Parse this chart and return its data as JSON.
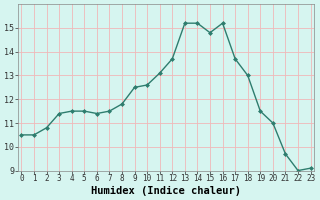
{
  "x": [
    0,
    1,
    2,
    3,
    4,
    5,
    6,
    7,
    8,
    9,
    10,
    11,
    12,
    13,
    14,
    15,
    16,
    17,
    18,
    19,
    20,
    21,
    22,
    23
  ],
  "y": [
    10.5,
    10.5,
    10.8,
    11.4,
    11.5,
    11.5,
    11.4,
    11.5,
    11.8,
    12.5,
    12.6,
    13.1,
    13.7,
    15.2,
    15.2,
    14.8,
    15.2,
    13.7,
    13.0,
    11.5,
    11.0,
    9.7,
    9.0,
    9.1
  ],
  "xlabel": "Humidex (Indice chaleur)",
  "ylim": [
    9,
    16
  ],
  "yticks": [
    9,
    10,
    11,
    12,
    13,
    14,
    15
  ],
  "xticks": [
    0,
    1,
    2,
    3,
    4,
    5,
    6,
    7,
    8,
    9,
    10,
    11,
    12,
    13,
    14,
    15,
    16,
    17,
    18,
    19,
    20,
    21,
    22,
    23
  ],
  "line_color": "#2e7d6e",
  "marker": "D",
  "marker_size": 2.0,
  "bg_color": "#d6f5f0",
  "grid_color": "#f0b8b8",
  "title_color": "#000000",
  "xlabel_fontsize": 7.5,
  "tick_fontsize": 5.5
}
